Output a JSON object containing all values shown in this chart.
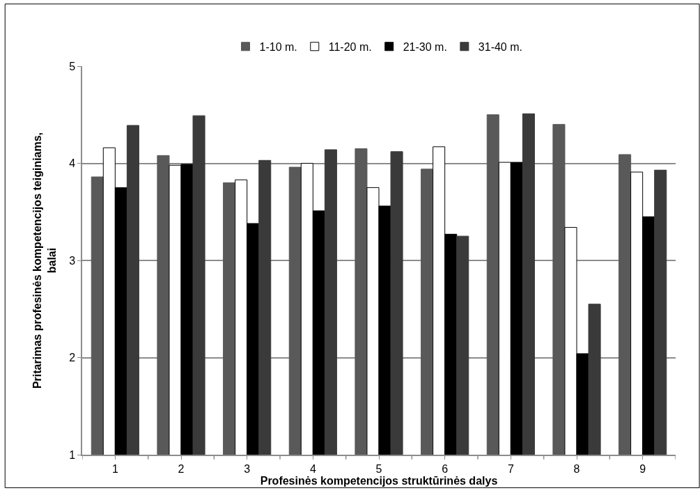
{
  "chart_data": {
    "type": "bar",
    "xlabel": "Profesinės kompetencijos struktūrinės dalys",
    "ylabel": "Pritarimas profesinės kompetencijos teiginiams, balai",
    "categories": [
      "1",
      "2",
      "3",
      "4",
      "5",
      "6",
      "7",
      "8",
      "9"
    ],
    "series": [
      {
        "name": "1-10 m.",
        "color": "#595959",
        "values": [
          3.86,
          4.08,
          3.8,
          3.96,
          4.15,
          3.94,
          4.5,
          4.4,
          4.09
        ]
      },
      {
        "name": "11-20 m.",
        "color": "#ffffff",
        "values": [
          4.16,
          3.98,
          3.83,
          4.0,
          3.75,
          4.17,
          4.01,
          3.34,
          3.91
        ]
      },
      {
        "name": "21-30 m.",
        "color": "#000000",
        "values": [
          3.75,
          3.99,
          3.38,
          3.51,
          3.56,
          3.27,
          4.01,
          2.04,
          3.45
        ]
      },
      {
        "name": "31-40 m.",
        "color": "#3a3a3a",
        "values": [
          4.39,
          4.49,
          4.03,
          4.14,
          4.12,
          3.25,
          4.51,
          2.55,
          3.93
        ]
      }
    ],
    "ylim": [
      1,
      5
    ],
    "yticks": [
      1,
      2,
      3,
      4,
      5
    ],
    "grid": "y",
    "legend": "top"
  }
}
